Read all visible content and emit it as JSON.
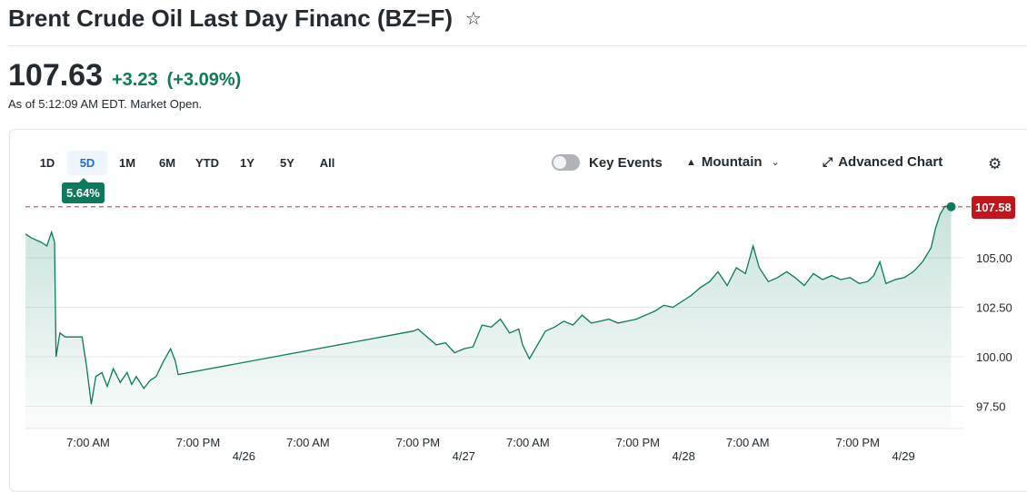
{
  "header": {
    "title": "Brent Crude Oil Last Day Financ (BZ=F)",
    "star_icon": "star-outline-icon"
  },
  "quote": {
    "price": "107.63",
    "change": "+3.23",
    "change_pct": "(+3.09%)",
    "as_of": "As of 5:12:09 AM EDT. Market Open.",
    "color_up": "#0b7a5d"
  },
  "toolbar": {
    "ranges": [
      "1D",
      "5D",
      "1M",
      "6M",
      "YTD",
      "1Y",
      "5Y",
      "All"
    ],
    "active_range": "5D",
    "range_change": "5.64%",
    "key_events_label": "Key Events",
    "key_events_on": false,
    "chart_type_label": "Mountain",
    "advanced_label": "Advanced Chart",
    "settings_icon": "gear-icon"
  },
  "chart_data": {
    "type": "area",
    "current_price_label": "107.58",
    "reference_line": 107.58,
    "reference_color": "#c0161c",
    "line_color": "#0b7a5d",
    "ylim": [
      97,
      108
    ],
    "yticks": [
      "105.00",
      "102.50",
      "100.00",
      "97.50"
    ],
    "ytick_values": [
      105,
      102.5,
      100,
      97.5
    ],
    "xticks": [
      "7:00 AM",
      "7:00 PM",
      "4/26",
      "7:00 AM",
      "7:00 PM",
      "4/27",
      "7:00 AM",
      "7:00 PM",
      "4/28",
      "7:00 AM",
      "7:00 PM",
      "4/29"
    ],
    "xtick_times": [
      "04-25 07:00",
      "04-25 19:00",
      "04-26 00:00",
      "04-26 07:00",
      "04-26 19:00",
      "04-27 00:00",
      "04-27 07:00",
      "04-27 19:00",
      "04-28 00:00",
      "04-28 07:00",
      "04-28 19:00",
      "04-29 00:00"
    ],
    "points": [
      [
        "04-25 00:10",
        106.2
      ],
      [
        "04-25 00:50",
        106.0
      ],
      [
        "04-25 01:50",
        105.8
      ],
      [
        "04-25 02:30",
        105.6
      ],
      [
        "04-25 03:00",
        106.3
      ],
      [
        "04-25 03:20",
        105.8
      ],
      [
        "04-25 03:30",
        100.0
      ],
      [
        "04-25 03:55",
        101.2
      ],
      [
        "04-25 04:30",
        101.0
      ],
      [
        "04-25 05:20",
        101.0
      ],
      [
        "04-25 06:20",
        101.0
      ],
      [
        "04-25 06:50",
        99.5
      ],
      [
        "04-25 07:20",
        97.6
      ],
      [
        "04-25 07:50",
        99.0
      ],
      [
        "04-25 08:30",
        99.2
      ],
      [
        "04-25 09:05",
        98.5
      ],
      [
        "04-25 09:45",
        99.4
      ],
      [
        "04-25 10:30",
        98.7
      ],
      [
        "04-25 11:15",
        99.2
      ],
      [
        "04-25 11:45",
        98.6
      ],
      [
        "04-25 12:15",
        99.0
      ],
      [
        "04-25 13:05",
        98.4
      ],
      [
        "04-25 13:45",
        98.8
      ],
      [
        "04-25 14:25",
        99.0
      ],
      [
        "04-25 15:15",
        99.8
      ],
      [
        "04-25 16:00",
        100.4
      ],
      [
        "04-25 16:30",
        99.8
      ],
      [
        "04-25 16:50",
        99.1
      ],
      [
        "04-26 18:30",
        101.3
      ],
      [
        "04-26 19:00",
        101.4
      ],
      [
        "04-26 20:00",
        101.0
      ],
      [
        "04-26 21:00",
        100.6
      ],
      [
        "04-26 22:00",
        100.7
      ],
      [
        "04-26 23:00",
        100.2
      ],
      [
        "04-27 00:00",
        100.4
      ],
      [
        "04-27 01:00",
        100.5
      ],
      [
        "04-27 02:00",
        101.6
      ],
      [
        "04-27 03:00",
        101.5
      ],
      [
        "04-27 04:00",
        101.9
      ],
      [
        "04-27 05:00",
        101.2
      ],
      [
        "04-27 06:00",
        101.4
      ],
      [
        "04-27 06:25",
        100.6
      ],
      [
        "04-27 07:10",
        99.9
      ],
      [
        "04-27 07:55",
        100.5
      ],
      [
        "04-27 08:55",
        101.3
      ],
      [
        "04-27 09:55",
        101.5
      ],
      [
        "04-27 10:55",
        101.8
      ],
      [
        "04-27 11:55",
        101.6
      ],
      [
        "04-27 12:55",
        102.1
      ],
      [
        "04-27 13:55",
        101.7
      ],
      [
        "04-27 14:55",
        101.8
      ],
      [
        "04-27 15:50",
        101.9
      ],
      [
        "04-27 16:50",
        101.7
      ],
      [
        "04-27 17:50",
        101.8
      ],
      [
        "04-27 18:50",
        101.9
      ],
      [
        "04-27 19:50",
        102.1
      ],
      [
        "04-27 20:50",
        102.3
      ],
      [
        "04-27 21:50",
        102.6
      ],
      [
        "04-27 22:50",
        102.5
      ],
      [
        "04-27 23:50",
        102.8
      ],
      [
        "04-28 00:50",
        103.1
      ],
      [
        "04-28 01:50",
        103.5
      ],
      [
        "04-28 02:50",
        103.8
      ],
      [
        "04-28 03:45",
        104.3
      ],
      [
        "04-28 04:45",
        103.6
      ],
      [
        "04-28 05:45",
        104.5
      ],
      [
        "04-28 06:45",
        104.2
      ],
      [
        "04-28 07:35",
        105.6
      ],
      [
        "04-28 08:15",
        104.5
      ],
      [
        "04-28 09:15",
        103.8
      ],
      [
        "04-28 10:15",
        104.0
      ],
      [
        "04-28 11:15",
        104.3
      ],
      [
        "04-28 12:10",
        104.0
      ],
      [
        "04-28 13:10",
        103.6
      ],
      [
        "04-28 14:10",
        104.2
      ],
      [
        "04-28 15:10",
        103.9
      ],
      [
        "04-28 16:10",
        104.1
      ],
      [
        "04-28 17:10",
        103.9
      ],
      [
        "04-28 18:10",
        104.0
      ],
      [
        "04-28 19:10",
        103.7
      ],
      [
        "04-28 20:05",
        103.8
      ],
      [
        "04-28 20:45",
        104.1
      ],
      [
        "04-28 21:25",
        104.8
      ],
      [
        "04-28 22:05",
        103.7
      ],
      [
        "04-28 23:05",
        103.9
      ],
      [
        "04-29 00:05",
        104.0
      ],
      [
        "04-29 01:05",
        104.3
      ],
      [
        "04-29 02:05",
        104.8
      ],
      [
        "04-29 03:00",
        105.5
      ],
      [
        "04-29 03:30",
        106.5
      ],
      [
        "04-29 04:00",
        107.2
      ],
      [
        "04-29 04:30",
        107.6
      ],
      [
        "04-29 05:12",
        107.58
      ]
    ]
  }
}
